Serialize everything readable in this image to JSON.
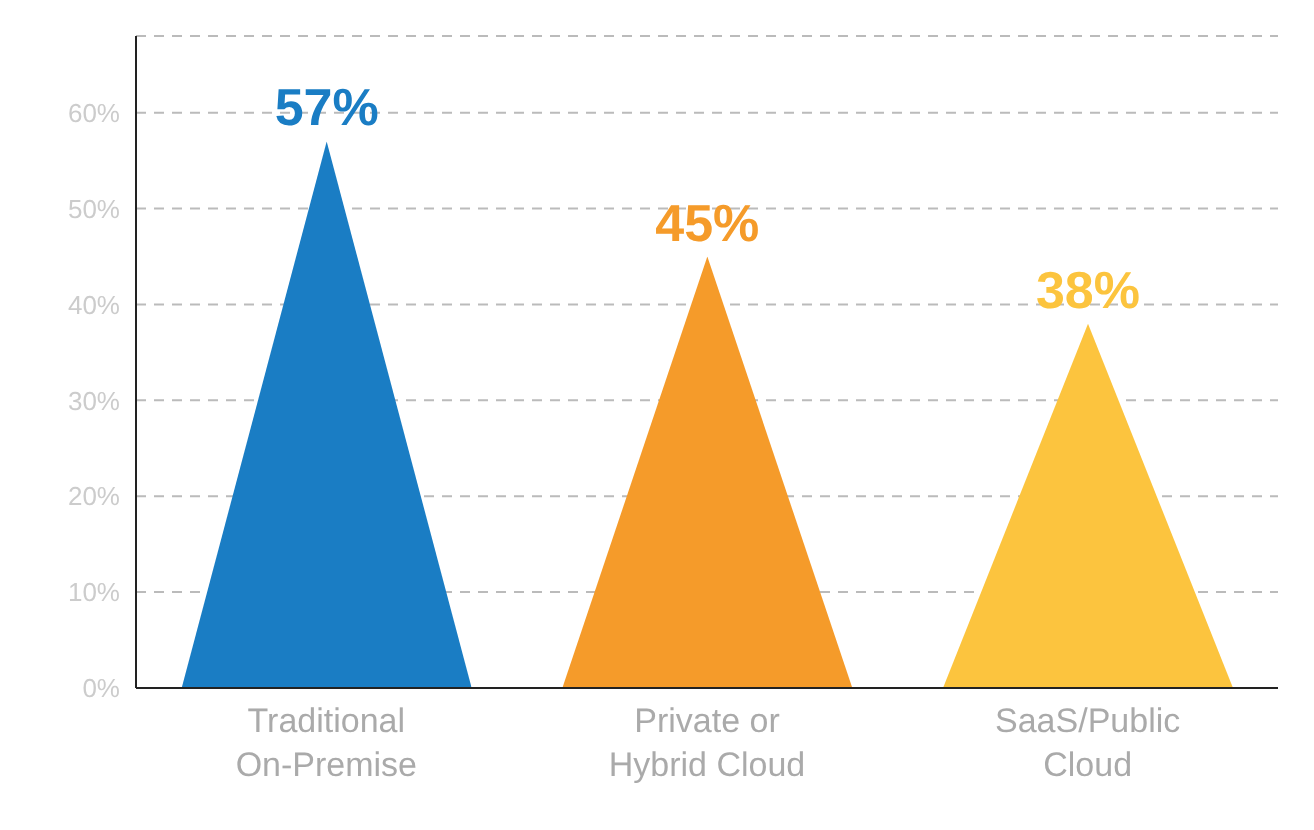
{
  "chart_data": {
    "type": "bar",
    "categories": [
      "Traditional On-Premise",
      "Private or Hybrid Cloud",
      "SaaS/Public Cloud"
    ],
    "values": [
      57,
      45,
      38
    ],
    "colors": [
      "#1a7dc4",
      "#f59b2a",
      "#fcc43e"
    ],
    "value_labels": [
      "57%",
      "45%",
      "38%"
    ],
    "ylim": [
      0,
      68
    ],
    "yticks": [
      {
        "value": 0,
        "label": "0%"
      },
      {
        "value": 10,
        "label": "10%"
      },
      {
        "value": 20,
        "label": "20%"
      },
      {
        "value": 30,
        "label": "30%"
      },
      {
        "value": 40,
        "label": "40%"
      },
      {
        "value": 50,
        "label": "50%"
      },
      {
        "value": 60,
        "label": "60%"
      }
    ],
    "grid": "y"
  }
}
